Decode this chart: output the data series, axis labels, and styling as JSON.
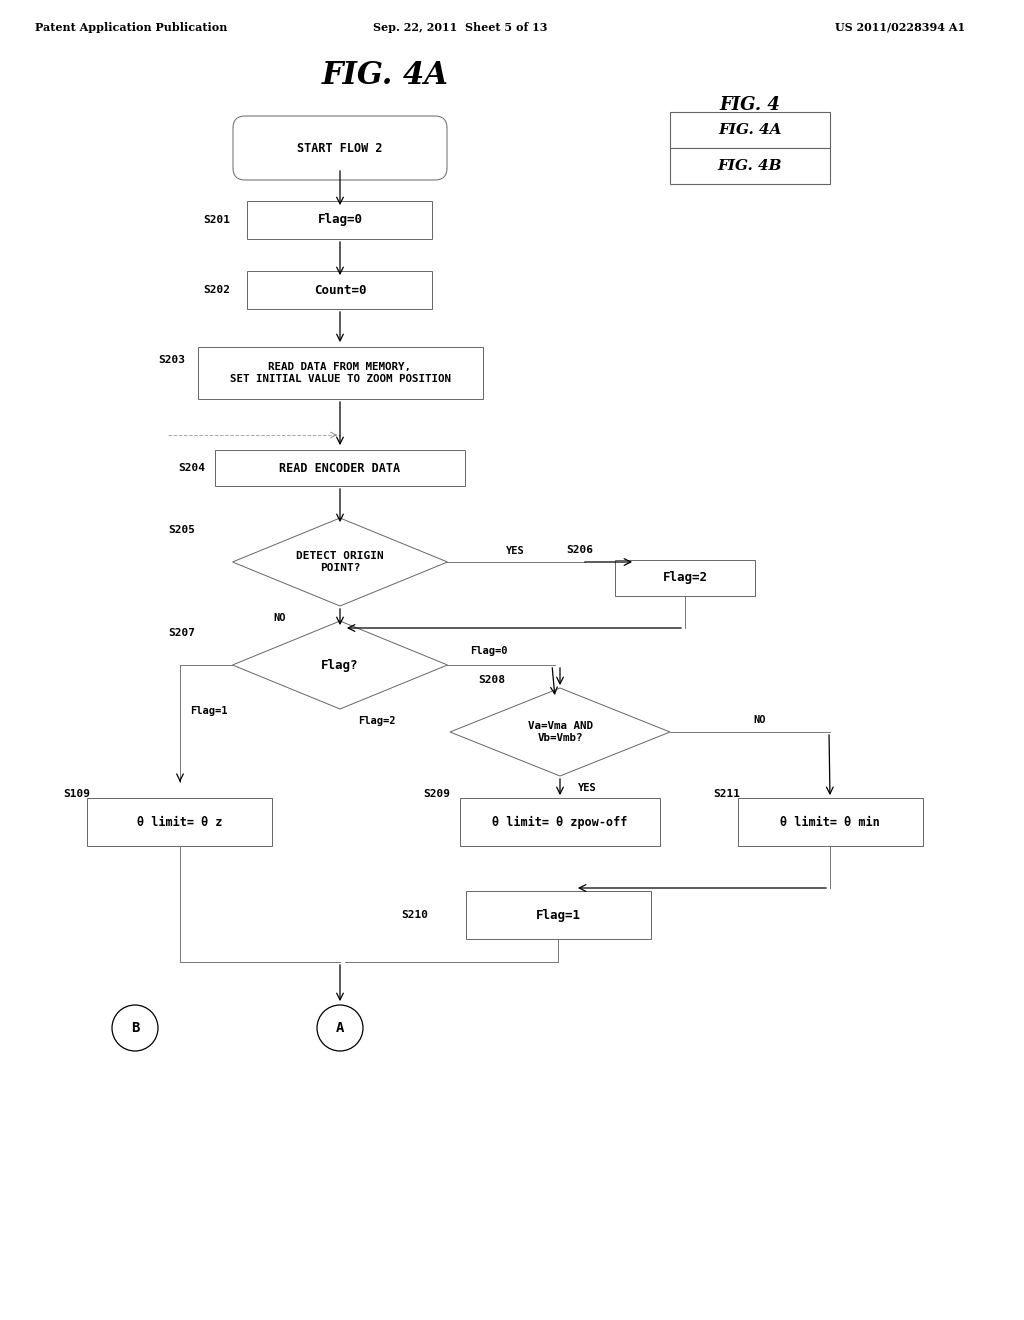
{
  "bg_color": "#ffffff",
  "header_left": "Patent Application Publication",
  "header_center": "Sep. 22, 2011  Sheet 5 of 13",
  "header_right": "US 2011/0228394 A1",
  "title": "FIG. 4A",
  "fig_label": "FIG. 4",
  "fig_4a": "FIG. 4A",
  "fig_4b": "FIG. 4B",
  "node_edge": "#666666",
  "node_fill": "#ffffff",
  "arrow_color": "#000000",
  "text_color": "#000000"
}
